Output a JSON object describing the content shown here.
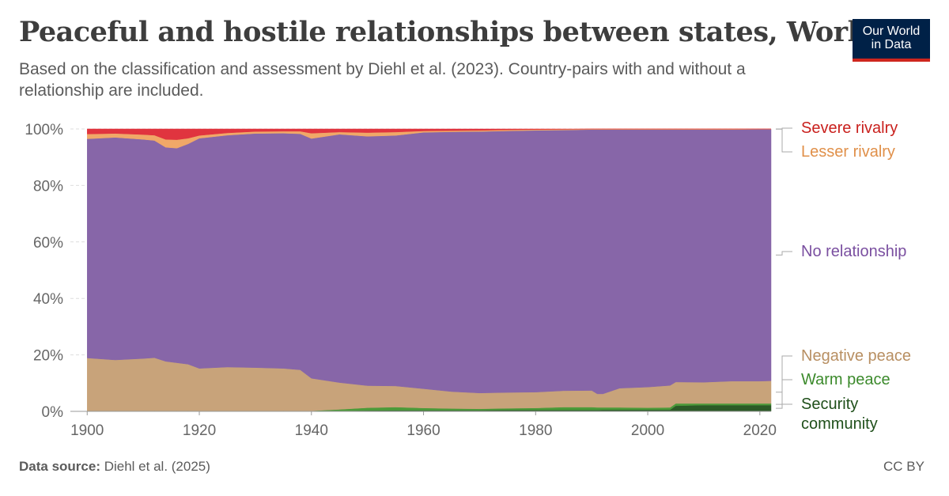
{
  "header": {
    "title": "Peaceful and hostile relationships between states, World",
    "subtitle": "Based on the classification and assessment by Diehl et al. (2023). Country-pairs with and without a relationship are included.",
    "logo_line1": "Our World",
    "logo_line2": "in Data"
  },
  "footer": {
    "source_label": "Data source:",
    "source_text": "Diehl et al. (2025)",
    "license": "CC BY"
  },
  "colors": {
    "security_community": "#2c5a27",
    "warm_peace": "#4c9a3a",
    "negative_peace": "#c8a37a",
    "no_relationship": "#8766a8",
    "lesser_rivalry": "#f0a868",
    "severe_rivalry": "#e0343f",
    "logo_bg": "#002147",
    "logo_accent": "#ce261e"
  },
  "chart_data": {
    "type": "area",
    "stacked": true,
    "normalized_percent": true,
    "x": [
      1900,
      1905,
      1910,
      1912,
      1914,
      1916,
      1918,
      1920,
      1925,
      1930,
      1935,
      1938,
      1940,
      1945,
      1950,
      1955,
      1960,
      1965,
      1970,
      1975,
      1980,
      1985,
      1990,
      1991,
      1992,
      1995,
      2000,
      2004,
      2005,
      2010,
      2015,
      2020,
      2022
    ],
    "x_ticks": [
      "1900",
      "1920",
      "1940",
      "1960",
      "1980",
      "2000",
      "2020"
    ],
    "y_ticks": [
      "0%",
      "20%",
      "40%",
      "60%",
      "80%",
      "100%"
    ],
    "ylim": [
      0,
      100
    ],
    "xlim": [
      1897,
      2022
    ],
    "grid": true,
    "legend_placement": "right, labels at series ends",
    "series": [
      {
        "name": "Security community",
        "color_key": "security_community",
        "values": [
          0.1,
          0.1,
          0.1,
          0.1,
          0.1,
          0.1,
          0.1,
          0.1,
          0.1,
          0.1,
          0.1,
          0.1,
          0.1,
          0.2,
          0.3,
          0.4,
          0.4,
          0.4,
          0.4,
          0.5,
          0.5,
          0.5,
          0.5,
          0.5,
          0.6,
          0.6,
          0.6,
          0.6,
          2.0,
          2.2,
          2.2,
          2.2,
          2.2
        ]
      },
      {
        "name": "Warm peace",
        "color_key": "warm_peace",
        "values": [
          0.1,
          0.1,
          0.1,
          0.1,
          0.1,
          0.1,
          0.1,
          0.1,
          0.1,
          0.1,
          0.1,
          0.1,
          0.1,
          0.5,
          1.0,
          1.1,
          0.8,
          0.6,
          0.5,
          0.6,
          0.7,
          1.0,
          1.0,
          0.9,
          0.8,
          0.8,
          0.7,
          0.8,
          0.8,
          0.6,
          0.6,
          0.6,
          0.6
        ]
      },
      {
        "name": "Negative peace",
        "color_key": "negative_peace",
        "values": [
          18.7,
          18.0,
          18.5,
          18.8,
          17.5,
          17.0,
          16.5,
          15.0,
          15.5,
          15.3,
          15.0,
          14.5,
          11.5,
          9.5,
          7.8,
          7.5,
          6.8,
          6.0,
          5.6,
          5.6,
          5.6,
          5.8,
          5.9,
          4.8,
          4.8,
          6.8,
          7.3,
          7.8,
          7.6,
          7.5,
          7.9,
          7.9,
          8.0
        ]
      },
      {
        "name": "No relationship",
        "color_key": "no_relationship",
        "values": [
          77.6,
          78.8,
          77.6,
          76.9,
          75.8,
          76.0,
          78.0,
          81.5,
          82.1,
          82.9,
          83.3,
          83.6,
          84.9,
          87.9,
          88.3,
          88.7,
          90.8,
          92.0,
          92.6,
          92.6,
          92.7,
          92.3,
          92.4,
          93.6,
          93.6,
          91.6,
          91.2,
          90.6,
          89.4,
          89.5,
          89.1,
          89.2,
          89.1
        ]
      },
      {
        "name": "Lesser rivalry",
        "color_key": "lesser_rivalry",
        "values": [
          1.7,
          1.4,
          1.7,
          1.9,
          2.8,
          3.0,
          2.0,
          1.0,
          0.8,
          0.7,
          0.7,
          0.9,
          1.9,
          0.8,
          1.3,
          1.2,
          0.5,
          0.4,
          0.4,
          0.4,
          0.3,
          0.3,
          0.2,
          0.2,
          0.2,
          0.2,
          0.2,
          0.2,
          0.2,
          0.2,
          0.2,
          0.1,
          0.1
        ]
      },
      {
        "name": "Severe rivalry",
        "color_key": "severe_rivalry",
        "values": [
          1.8,
          1.6,
          2.0,
          2.2,
          3.7,
          3.8,
          3.3,
          2.3,
          1.4,
          0.9,
          0.8,
          0.8,
          1.5,
          1.1,
          1.3,
          1.1,
          0.7,
          0.6,
          0.5,
          0.3,
          0.2,
          0.1,
          0.0,
          0.0,
          0.0,
          0.0,
          0.0,
          0.0,
          0.0,
          0.0,
          0.0,
          0.0,
          0.0
        ]
      }
    ],
    "legend": [
      {
        "label": "Severe rivalry",
        "color_key": "severe_rivalry",
        "label_color": "#c9201d"
      },
      {
        "label": "Lesser rivalry",
        "color_key": "lesser_rivalry",
        "label_color": "#e0904a"
      },
      {
        "label": "No relationship",
        "color_key": "no_relationship",
        "label_color": "#7a4fa0"
      },
      {
        "label": "Negative peace",
        "color_key": "negative_peace",
        "label_color": "#b88f62"
      },
      {
        "label": "Warm peace",
        "color_key": "warm_peace",
        "label_color": "#3c8a2c"
      },
      {
        "label": "Security community",
        "color_key": "security_community",
        "label_color": "#1f4f1a",
        "lines": [
          "Security",
          "community"
        ]
      }
    ]
  }
}
